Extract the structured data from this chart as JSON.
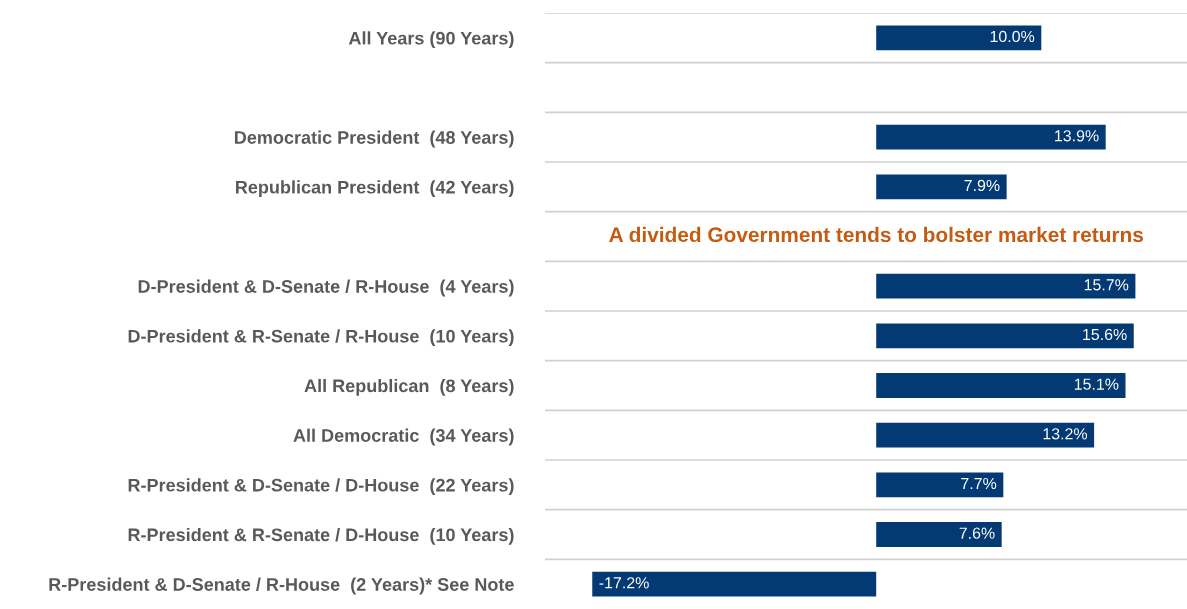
{
  "chart_data": {
    "type": "bar",
    "orientation": "horizontal",
    "categories": [
      "All Years (90 Years)",
      null,
      "Democratic President  (48 Years)",
      "Republican President  (42 Years)",
      null,
      "D-President & D-Senate / R-House  (4 Years)",
      "D-President & R-Senate / R-House  (10 Years)",
      "All Republican  (8 Years)",
      "All Democratic  (34 Years)",
      "R-President & D-Senate / D-House  (22 Years)",
      "R-President & R-Senate / D-House  (10 Years)",
      "R-President & D-Senate / R-House  (2 Years)* See Note"
    ],
    "values": [
      10.0,
      null,
      13.9,
      7.9,
      null,
      15.7,
      15.6,
      15.1,
      13.2,
      7.7,
      7.6,
      -17.2
    ],
    "value_labels": [
      "10.0%",
      null,
      "13.9%",
      "7.9%",
      null,
      "15.7%",
      "15.6%",
      "15.1%",
      "13.2%",
      "7.7%",
      "7.6%",
      "-17.2%"
    ],
    "color": "#043a73",
    "annotations": [
      "A divided Government tends to bolster market returns"
    ],
    "grid": "y",
    "tick_labels": "y",
    "legend": false
  }
}
